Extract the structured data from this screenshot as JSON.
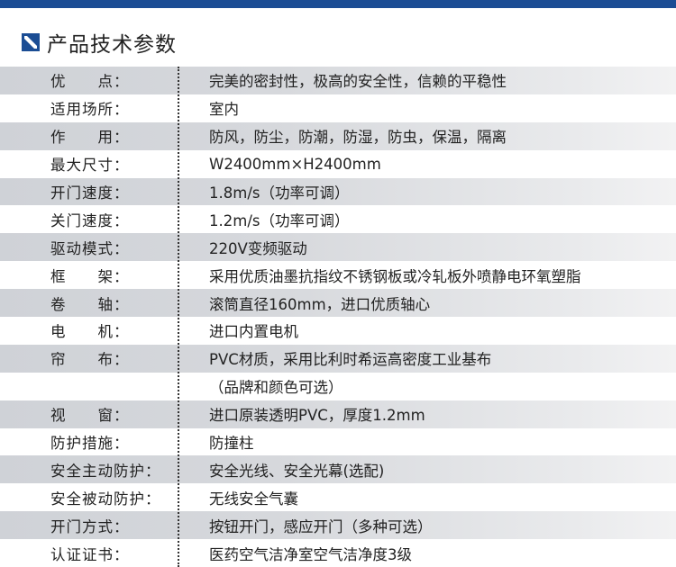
{
  "header": {
    "title": "产品技术参数",
    "icon": "blue-square-slash-icon",
    "accent": "#1b4d94"
  },
  "rows": [
    {
      "label": "优　　点：",
      "value": "完美的密封性，极高的安全性，信赖的平稳性"
    },
    {
      "label": "适用场所：",
      "value": "室内"
    },
    {
      "label": "作　　用：",
      "value": "防风，防尘，防潮，防湿，防虫，保温，隔离"
    },
    {
      "label": "最大尺寸：",
      "value": "W2400mm×H2400mm"
    },
    {
      "label": "开门速度：",
      "value": "1.8m/s（功率可调）"
    },
    {
      "label": "关门速度：",
      "value": "1.2m/s（功率可调）"
    },
    {
      "label": "驱动模式：",
      "value": "220V变频驱动"
    },
    {
      "label": "框　　架：",
      "value": "采用优质油墨抗指纹不锈钢板或冷轧板外喷静电环氧塑脂"
    },
    {
      "label": "卷　　轴：",
      "value": "滚筒直径160mm，进口优质轴心"
    },
    {
      "label": "电　　机：",
      "value": "进口内置电机"
    },
    {
      "label": "帘　　布：",
      "value": "PVC材质，采用比利时希运高密度工业基布"
    },
    {
      "label": "",
      "value": "（品牌和颜色可选）"
    },
    {
      "label": "视　　窗：",
      "value": "进口原装透明PVC，厚度1.2mm"
    },
    {
      "label": "防护措施：",
      "value": "防撞柱"
    },
    {
      "label": "安全主动防护：",
      "value": "安全光线、安全光幕(选配)"
    },
    {
      "label": "安全被动防护：",
      "value": "无线安全气囊"
    },
    {
      "label": "开门方式：",
      "value": "按钮开门，感应开门（多种可选）"
    },
    {
      "label": "认证证书：",
      "value": "医药空气洁净室空气洁净度3级"
    }
  ]
}
